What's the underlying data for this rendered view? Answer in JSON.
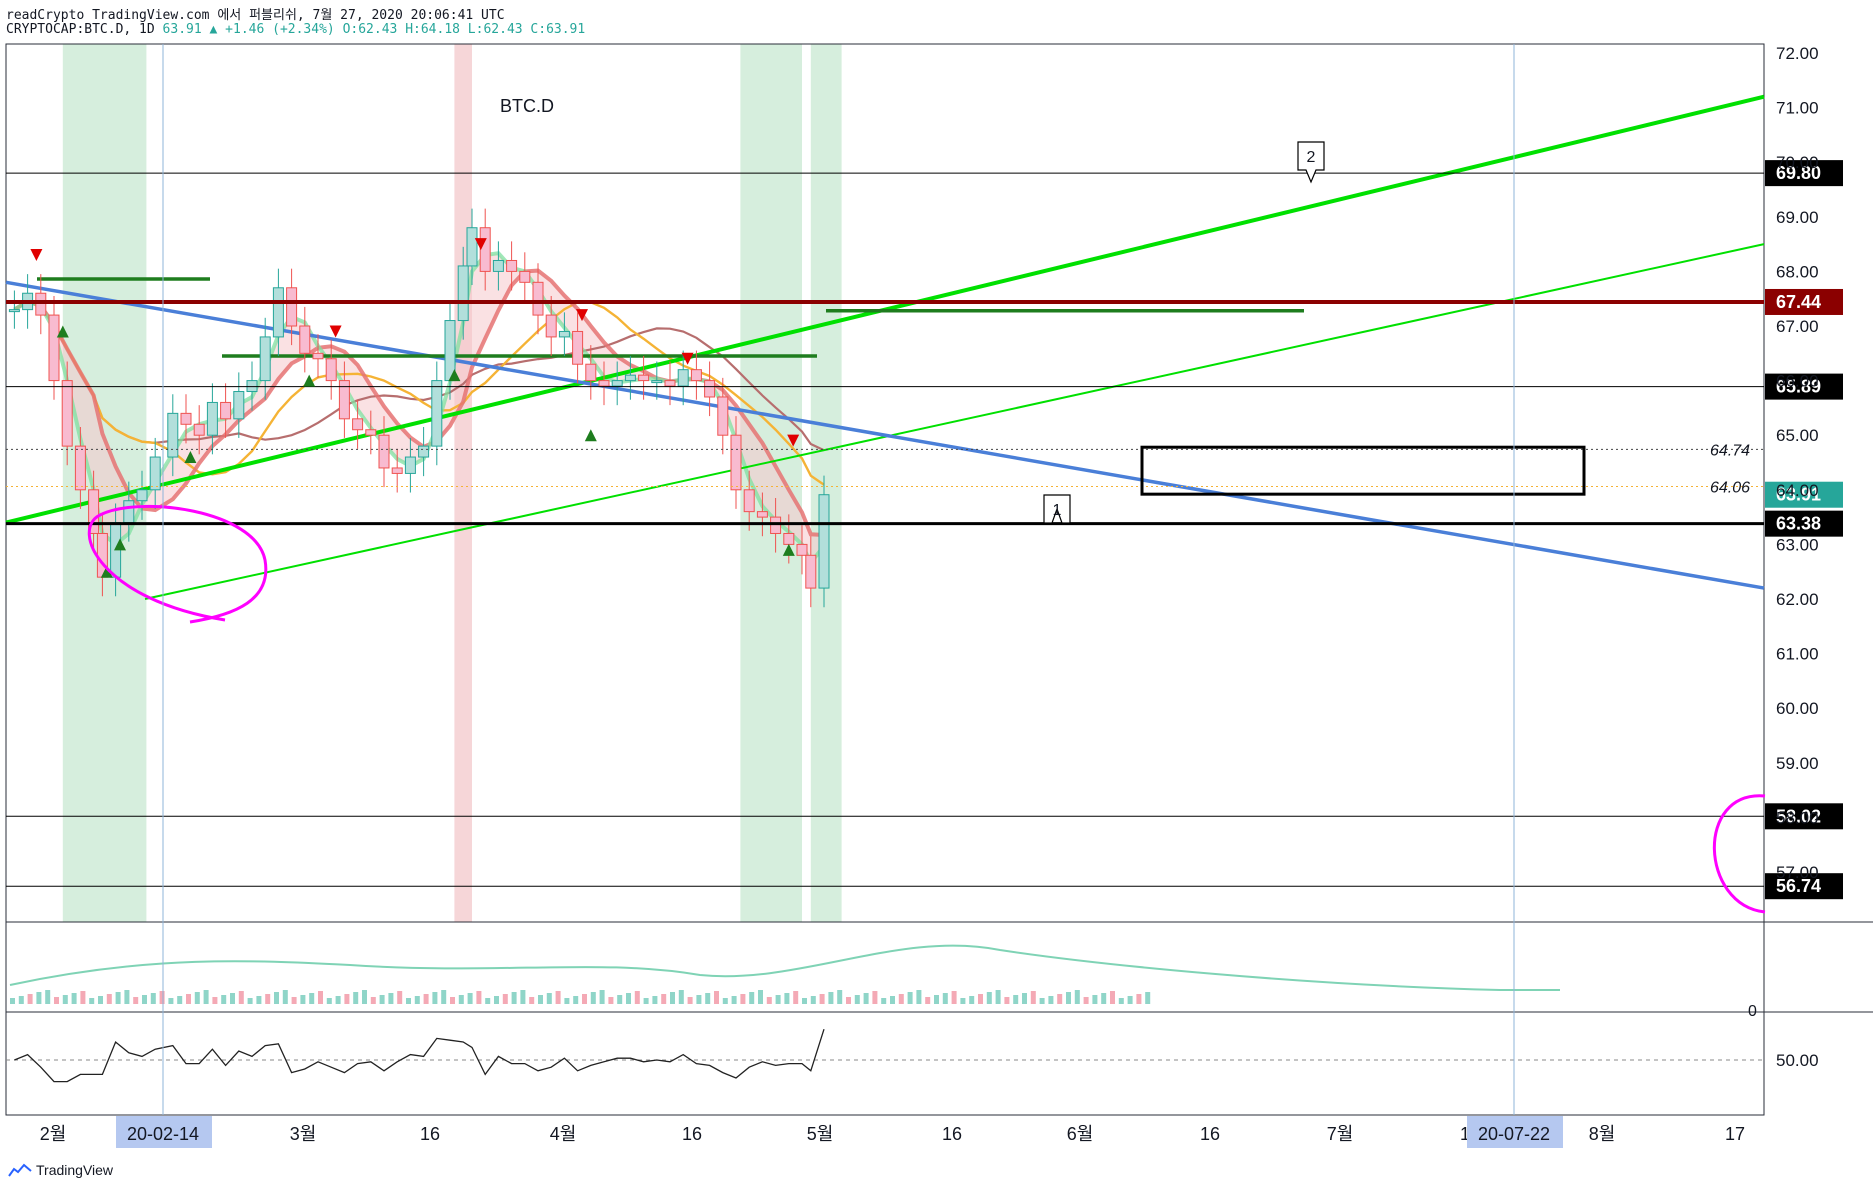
{
  "header": {
    "line1": "readCrypto TradingView.com 에서 퍼블리쉬, 7월 27, 2020 20:06:41 UTC",
    "line2_symbol": "CRYPTOCAP:BTC.D, 1D",
    "line2_close": "63.91",
    "line2_change": "▲ +1.46 (+2.34%)",
    "line2_ohlc": "O:62.43 H:64.18 L:62.43 C:63.91"
  },
  "chart_data": {
    "type": "line",
    "title": "BTC.D",
    "ylim": [
      55.5,
      72.2
    ],
    "y_ticks": [
      "72.00",
      "71.00",
      "70.00",
      "69.00",
      "68.00",
      "67.00",
      "66.00",
      "65.00",
      "64.00",
      "63.00",
      "62.00",
      "61.00",
      "60.00",
      "59.00",
      "58.00",
      "57.00"
    ],
    "x_ticks": [
      "2월",
      "3월",
      "16",
      "4월",
      "16",
      "5월",
      "16",
      "6월",
      "16",
      "7월",
      "16",
      "8월",
      "17"
    ],
    "x_highlight": [
      "20-02-14",
      "20-07-22"
    ],
    "horizontal_levels": [
      {
        "value": 69.8,
        "label": "69.80",
        "color": "#000000"
      },
      {
        "value": 67.44,
        "label": "67.44",
        "color": "#8b0000"
      },
      {
        "value": 65.89,
        "label": "65.89",
        "color": "#000000"
      },
      {
        "value": 63.91,
        "label": "63.91",
        "color": "#26a69a"
      },
      {
        "value": 63.38,
        "label": "63.38",
        "color": "#000000"
      },
      {
        "value": 58.02,
        "label": "58.02",
        "color": "#000000"
      },
      {
        "value": 56.74,
        "label": "56.74",
        "color": "#000000"
      }
    ],
    "dotted_levels": [
      {
        "value": 64.74,
        "label": "64.74"
      },
      {
        "value": 64.06,
        "label": "64.06"
      }
    ],
    "annotations": [
      "1",
      "2"
    ],
    "price_series": [
      {
        "date": "2020-01-25",
        "close": 67.3
      },
      {
        "date": "2020-01-28",
        "close": 67.6
      },
      {
        "date": "2020-01-31",
        "close": 67.2
      },
      {
        "date": "2020-02-03",
        "close": 66.0
      },
      {
        "date": "2020-02-06",
        "close": 64.8
      },
      {
        "date": "2020-02-09",
        "close": 64.0
      },
      {
        "date": "2020-02-12",
        "close": 63.2
      },
      {
        "date": "2020-02-14",
        "close": 62.4
      },
      {
        "date": "2020-02-17",
        "close": 63.4
      },
      {
        "date": "2020-02-20",
        "close": 63.8
      },
      {
        "date": "2020-02-23",
        "close": 64.0
      },
      {
        "date": "2020-02-26",
        "close": 64.6
      },
      {
        "date": "2020-03-01",
        "close": 65.4
      },
      {
        "date": "2020-03-04",
        "close": 65.2
      },
      {
        "date": "2020-03-07",
        "close": 65.0
      },
      {
        "date": "2020-03-10",
        "close": 65.6
      },
      {
        "date": "2020-03-13",
        "close": 65.3
      },
      {
        "date": "2020-03-16",
        "close": 65.8
      },
      {
        "date": "2020-03-19",
        "close": 66.0
      },
      {
        "date": "2020-03-22",
        "close": 66.8
      },
      {
        "date": "2020-03-25",
        "close": 67.7
      },
      {
        "date": "2020-03-28",
        "close": 67.0
      },
      {
        "date": "2020-03-31",
        "close": 66.5
      },
      {
        "date": "2020-04-03",
        "close": 66.4
      },
      {
        "date": "2020-04-06",
        "close": 66.0
      },
      {
        "date": "2020-04-09",
        "close": 65.3
      },
      {
        "date": "2020-04-12",
        "close": 65.1
      },
      {
        "date": "2020-04-15",
        "close": 65.0
      },
      {
        "date": "2020-04-18",
        "close": 64.4
      },
      {
        "date": "2020-04-21",
        "close": 64.3
      },
      {
        "date": "2020-04-24",
        "close": 64.6
      },
      {
        "date": "2020-04-27",
        "close": 64.8
      },
      {
        "date": "2020-04-30",
        "close": 66.0
      },
      {
        "date": "2020-05-03",
        "close": 67.1
      },
      {
        "date": "2020-05-06",
        "close": 68.1
      },
      {
        "date": "2020-05-08",
        "close": 68.8
      },
      {
        "date": "2020-05-11",
        "close": 68.0
      },
      {
        "date": "2020-05-14",
        "close": 68.2
      },
      {
        "date": "2020-05-17",
        "close": 68.0
      },
      {
        "date": "2020-05-20",
        "close": 67.8
      },
      {
        "date": "2020-05-23",
        "close": 67.2
      },
      {
        "date": "2020-05-26",
        "close": 66.8
      },
      {
        "date": "2020-05-29",
        "close": 66.9
      },
      {
        "date": "2020-06-01",
        "close": 66.3
      },
      {
        "date": "2020-06-04",
        "close": 66.0
      },
      {
        "date": "2020-06-07",
        "close": 65.9
      },
      {
        "date": "2020-06-10",
        "close": 66.0
      },
      {
        "date": "2020-06-13",
        "close": 66.1
      },
      {
        "date": "2020-06-16",
        "close": 66.0
      },
      {
        "date": "2020-06-19",
        "close": 66.0
      },
      {
        "date": "2020-06-22",
        "close": 65.9
      },
      {
        "date": "2020-06-25",
        "close": 66.2
      },
      {
        "date": "2020-06-28",
        "close": 66.0
      },
      {
        "date": "2020-07-01",
        "close": 65.7
      },
      {
        "date": "2020-07-04",
        "close": 65.0
      },
      {
        "date": "2020-07-07",
        "close": 64.0
      },
      {
        "date": "2020-07-10",
        "close": 63.6
      },
      {
        "date": "2020-07-13",
        "close": 63.5
      },
      {
        "date": "2020-07-16",
        "close": 63.2
      },
      {
        "date": "2020-07-19",
        "close": 63.0
      },
      {
        "date": "2020-07-22",
        "close": 62.8
      },
      {
        "date": "2020-07-24",
        "close": 62.2
      },
      {
        "date": "2020-07-27",
        "close": 63.91
      }
    ],
    "lower_pane_tick": "0",
    "rsi_tick": "50.00"
  },
  "colors": {
    "green_band": "#d6eedd",
    "red_band": "#f6d6d8",
    "bullish": "#26a69a",
    "bearish": "#ef5350",
    "channel": "#00e000",
    "downtrend": "#4a7fd8",
    "level_dark_red": "#8b0000",
    "magenta": "#ff00ff"
  },
  "footer": {
    "brand": "TradingView"
  }
}
